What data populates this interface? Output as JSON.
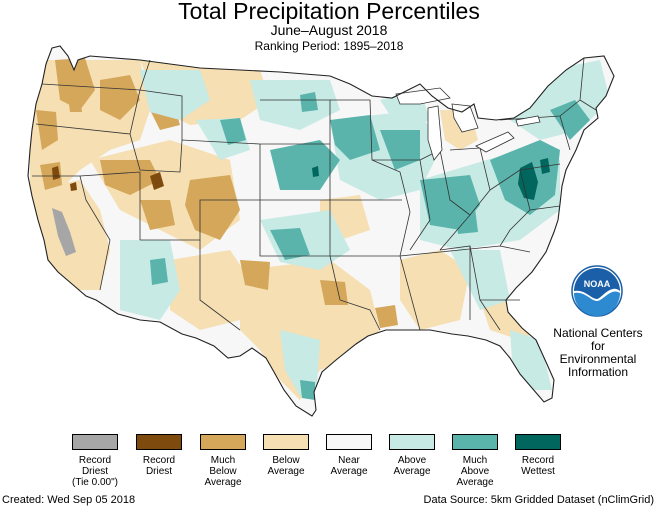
{
  "header": {
    "title": "Total Precipitation Percentiles",
    "subtitle": "June–August 2018",
    "ranking_period": "Ranking Period: 1895–2018"
  },
  "org": {
    "logo_text": "NOAA",
    "line1": "National Centers for",
    "line2": "Environmental",
    "line3": "Information"
  },
  "legend": {
    "items": [
      {
        "line1": "Record",
        "line2": "Driest",
        "line3": "(Tie 0.00\")",
        "color": "#a6a6a6"
      },
      {
        "line1": "Record",
        "line2": "Driest",
        "line3": "",
        "color": "#7f4a0d"
      },
      {
        "line1": "Much",
        "line2": "Below",
        "line3": "Average",
        "color": "#d4a75a"
      },
      {
        "line1": "Below",
        "line2": "Average",
        "line3": "",
        "color": "#f5dfb3"
      },
      {
        "line1": "Near",
        "line2": "Average",
        "line3": "",
        "color": "#f7f7f7"
      },
      {
        "line1": "Above",
        "line2": "Average",
        "line3": "",
        "color": "#c7eae5"
      },
      {
        "line1": "Much",
        "line2": "Above",
        "line3": "Average",
        "color": "#5ab4ac"
      },
      {
        "line1": "Record",
        "line2": "Wettest",
        "line3": "",
        "color": "#01665e"
      }
    ]
  },
  "footer": {
    "created": "Created: Wed Sep 05 2018",
    "source": "Data Source: 5km Gridded Dataset (nClimGrid)"
  }
}
